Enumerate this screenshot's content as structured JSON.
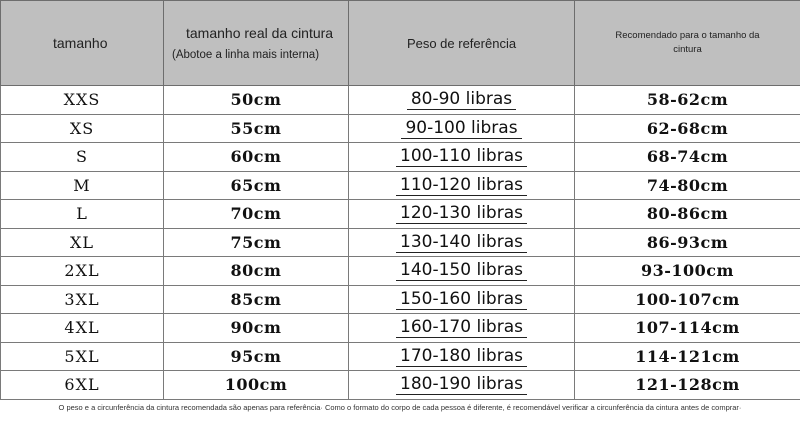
{
  "headers": {
    "size": "tamanho",
    "waist_main": "tamanho real da cintura",
    "waist_sub": "(Abotoe a linha mais interna)",
    "weight": "Peso de referência",
    "recommended": "Recomendado para o tamanho da cintura"
  },
  "rows": [
    {
      "size": "XXS",
      "waist": "50cm",
      "weight": "80-90 libras",
      "recommended": "58-62cm"
    },
    {
      "size": "XS",
      "waist": "55cm",
      "weight": "90-100 libras",
      "recommended": "62-68cm"
    },
    {
      "size": "S",
      "waist": "60cm",
      "weight": "100-110 libras",
      "recommended": "68-74cm"
    },
    {
      "size": "M",
      "waist": "65cm",
      "weight": "110-120 libras",
      "recommended": "74-80cm"
    },
    {
      "size": "L",
      "waist": "70cm",
      "weight": "120-130 libras",
      "recommended": "80-86cm"
    },
    {
      "size": "XL",
      "waist": "75cm",
      "weight": "130-140 libras",
      "recommended": "86-93cm"
    },
    {
      "size": "2XL",
      "waist": "80cm",
      "weight": "140-150 libras",
      "recommended": "93-100cm"
    },
    {
      "size": "3XL",
      "waist": "85cm",
      "weight": "150-160 libras",
      "recommended": "100-107cm"
    },
    {
      "size": "4XL",
      "waist": "90cm",
      "weight": "160-170 libras",
      "recommended": "107-114cm"
    },
    {
      "size": "5XL",
      "waist": "95cm",
      "weight": "170-180 libras",
      "recommended": "114-121cm"
    },
    {
      "size": "6XL",
      "waist": "100cm",
      "weight": "180-190 libras",
      "recommended": "121-128cm"
    }
  ],
  "footnote": "O peso e a circunferência da cintura recomendada são apenas para referência· Como o formato do corpo de cada pessoa é diferente, é recomendável verificar a circunferência da cintura antes de comprar·"
}
